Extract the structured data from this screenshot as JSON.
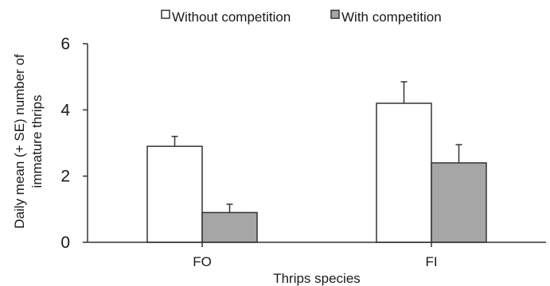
{
  "chart_data": {
    "type": "bar",
    "categories": [
      "FO",
      "FI"
    ],
    "series": [
      {
        "name": "Without competition",
        "values": [
          2.9,
          4.2
        ],
        "errors": [
          0.3,
          0.65
        ],
        "color": "#ffffff"
      },
      {
        "name": "With competition",
        "values": [
          0.9,
          2.4
        ],
        "errors": [
          0.25,
          0.55
        ],
        "color": "#a6a6a6"
      }
    ],
    "xlabel": "Thrips species",
    "ylabel_lines": [
      "Daily mean (+ SE) number of",
      "immature thrips"
    ],
    "ylim": [
      0,
      6
    ],
    "yticks": [
      0,
      2,
      4,
      6
    ],
    "grid": false,
    "legend_position": "top"
  }
}
